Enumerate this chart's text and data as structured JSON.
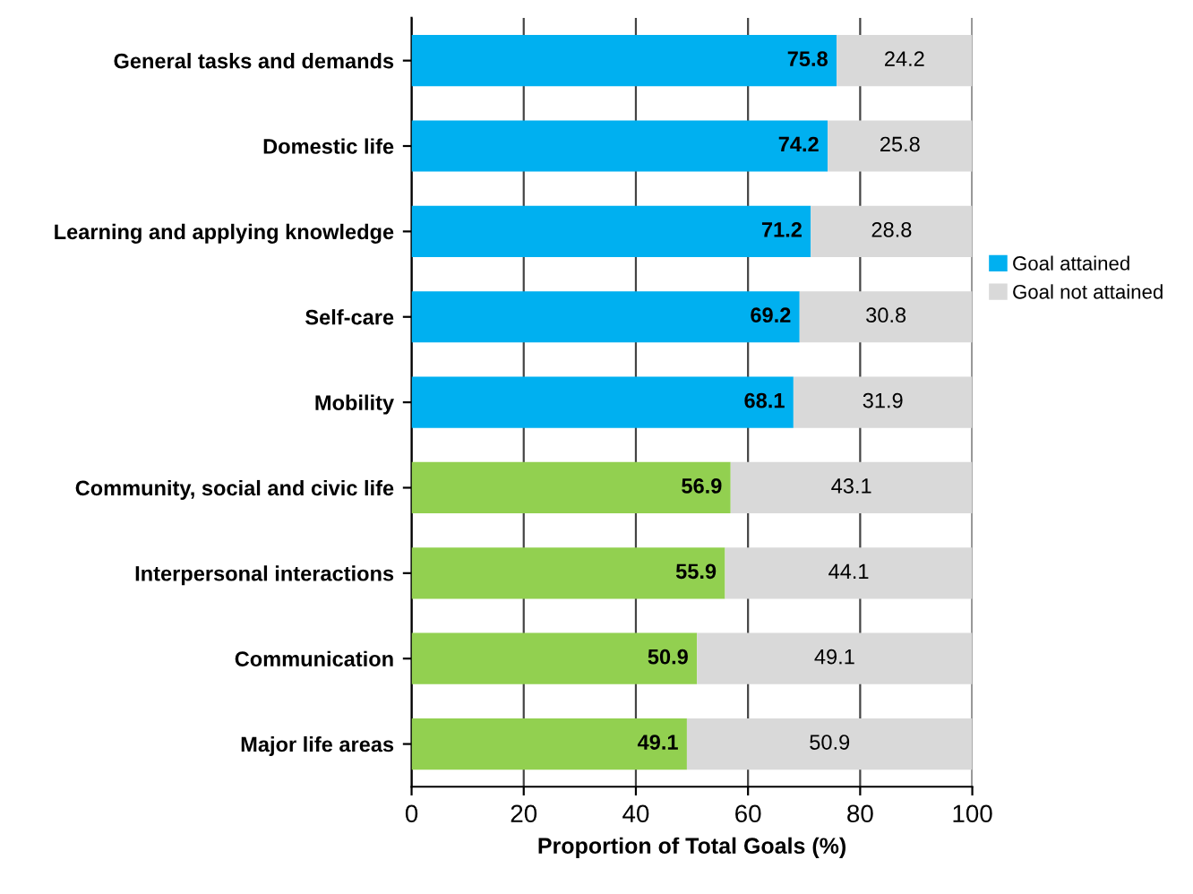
{
  "chart_data": {
    "type": "bar",
    "orientation": "horizontal",
    "stacked": true,
    "xlabel": "Proportion of Total Goals (%)",
    "categories": [
      "General tasks and demands",
      "Domestic life",
      "Learning and applying knowledge",
      "Self-care",
      "Mobility",
      "Community, social and civic life",
      "Interpersonal interactions",
      "Communication",
      "Major life areas"
    ],
    "series": [
      {
        "name": "Goal attained",
        "color": "#00b0f0",
        "colors": [
          "#00b0f0",
          "#00b0f0",
          "#00b0f0",
          "#00b0f0",
          "#00b0f0",
          "#92d050",
          "#92d050",
          "#92d050",
          "#92d050"
        ],
        "values": [
          75.8,
          74.2,
          71.2,
          69.2,
          68.1,
          56.9,
          55.9,
          50.9,
          49.1
        ]
      },
      {
        "name": "Goal not attained",
        "color": "#d9d9d9",
        "values": [
          24.2,
          25.8,
          28.8,
          30.8,
          31.9,
          43.1,
          44.1,
          49.1,
          50.9
        ]
      }
    ],
    "xlim": [
      0,
      100
    ],
    "xticks": [
      0,
      20,
      40,
      60,
      80,
      100
    ],
    "grid": "x",
    "legend": "right",
    "data_labels": true
  }
}
